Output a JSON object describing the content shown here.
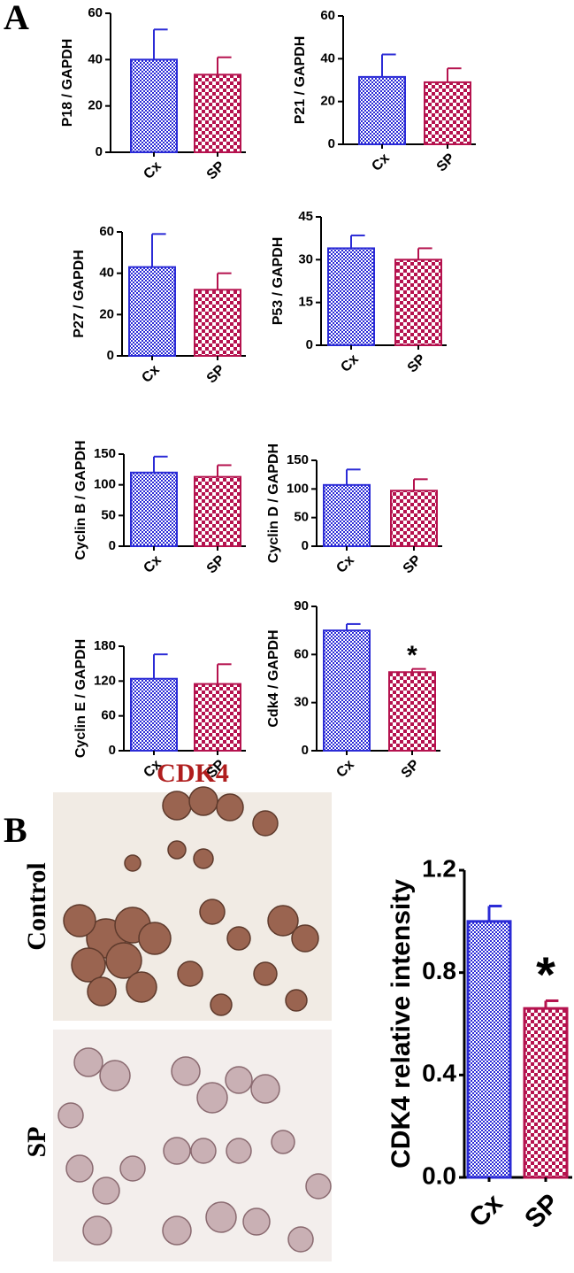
{
  "panels": [
    {
      "label": "A"
    },
    {
      "label": "B",
      "image_title": "CDK4",
      "row_labels": [
        "Control",
        "SP"
      ]
    }
  ],
  "chart_data": [
    {
      "type": "bar",
      "ylabel": "P18 / GAPDH",
      "categories": [
        "Cx",
        "SP"
      ],
      "values": [
        40,
        33.5
      ],
      "errors": [
        13,
        7.5
      ],
      "colors": [
        "#2b2bd6",
        "#b5124e"
      ],
      "ylim": [
        0,
        60
      ],
      "yticks": [
        0,
        20,
        40,
        60
      ]
    },
    {
      "type": "bar",
      "ylabel": "P21 / GAPDH",
      "categories": [
        "Cx",
        "SP"
      ],
      "values": [
        31.5,
        29
      ],
      "errors": [
        10.5,
        6.5
      ],
      "colors": [
        "#2b2bd6",
        "#b5124e"
      ],
      "ylim": [
        0,
        60
      ],
      "yticks": [
        0,
        20,
        40,
        60
      ]
    },
    {
      "type": "bar",
      "ylabel": "P27 / GAPDH",
      "categories": [
        "Cx",
        "SP"
      ],
      "values": [
        43,
        32
      ],
      "errors": [
        16,
        8
      ],
      "colors": [
        "#2b2bd6",
        "#b5124e"
      ],
      "ylim": [
        0,
        60
      ],
      "yticks": [
        0,
        20,
        40,
        60
      ]
    },
    {
      "type": "bar",
      "ylabel": "P53 / GAPDH",
      "categories": [
        "Cx",
        "SP"
      ],
      "values": [
        34,
        30
      ],
      "errors": [
        4.5,
        4
      ],
      "colors": [
        "#2b2bd6",
        "#b5124e"
      ],
      "ylim": [
        0,
        45
      ],
      "yticks": [
        0,
        15,
        30,
        45
      ]
    },
    {
      "type": "bar",
      "ylabel": "Cyclin B / GAPDH",
      "categories": [
        "Cx",
        "SP"
      ],
      "values": [
        120,
        113
      ],
      "errors": [
        26,
        19
      ],
      "colors": [
        "#2b2bd6",
        "#b5124e"
      ],
      "ylim": [
        0,
        150
      ],
      "yticks": [
        0,
        50,
        100,
        150
      ]
    },
    {
      "type": "bar",
      "ylabel": "Cyclin D / GAPDH",
      "categories": [
        "Cx",
        "SP"
      ],
      "values": [
        107,
        97
      ],
      "errors": [
        27,
        20
      ],
      "colors": [
        "#2b2bd6",
        "#b5124e"
      ],
      "ylim": [
        0,
        150
      ],
      "yticks": [
        0,
        50,
        100,
        150
      ]
    },
    {
      "type": "bar",
      "ylabel": "Cyclin E / GAPDH",
      "categories": [
        "Cx",
        "SP"
      ],
      "values": [
        124,
        115
      ],
      "errors": [
        42,
        34
      ],
      "colors": [
        "#2b2bd6",
        "#b5124e"
      ],
      "ylim": [
        0,
        180
      ],
      "yticks": [
        0,
        60,
        120,
        180
      ]
    },
    {
      "type": "bar",
      "ylabel": "Cdk4 / GAPDH",
      "categories": [
        "Cx",
        "SP"
      ],
      "values": [
        75,
        49
      ],
      "errors": [
        4,
        2
      ],
      "colors": [
        "#2b2bd6",
        "#b5124e"
      ],
      "ylim": [
        0,
        90
      ],
      "yticks": [
        0,
        30,
        60,
        90
      ],
      "annotation": "*"
    },
    {
      "type": "bar",
      "ylabel": "CDK4 relative  intensity",
      "categories": [
        "Cx",
        "SP"
      ],
      "values": [
        1.0,
        0.66
      ],
      "errors": [
        0.06,
        0.03
      ],
      "colors": [
        "#2b2bd6",
        "#b5124e"
      ],
      "ylim": [
        0,
        1.2
      ],
      "yticks": [
        {
          "value": 0,
          "label": "0.0"
        },
        0.4,
        0.8,
        1.2
      ],
      "annotation": "*"
    }
  ]
}
